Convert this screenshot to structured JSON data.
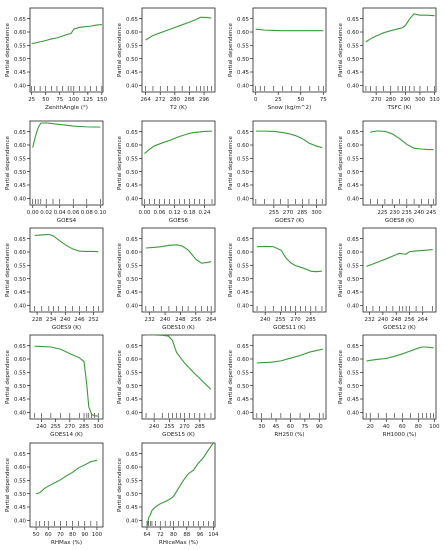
{
  "figure": {
    "ylabel": "Partial dependence",
    "yticks": [
      "0.40",
      "0.45",
      "0.50",
      "0.55",
      "0.60",
      "0.65"
    ],
    "ylim": [
      0.375,
      0.69
    ],
    "line_color": "#3a9a3a"
  },
  "chart_data": [
    {
      "type": "line",
      "xlabel": "ZenithAngle (°)",
      "xlim": [
        22,
        152
      ],
      "xticks": [
        "25",
        "50",
        "75",
        "100",
        "125",
        "150"
      ],
      "x": [
        25,
        30,
        40,
        50,
        60,
        70,
        80,
        90,
        95,
        100,
        110,
        120,
        130,
        140,
        150
      ],
      "y": [
        0.557,
        0.558,
        0.563,
        0.568,
        0.574,
        0.578,
        0.585,
        0.592,
        0.594,
        0.611,
        0.617,
        0.62,
        0.622,
        0.626,
        0.628
      ]
    },
    {
      "type": "line",
      "xlabel": "T2 (K)",
      "xlim": [
        262,
        302
      ],
      "xticks": [
        "264",
        "272",
        "280",
        "288",
        "296"
      ],
      "x": [
        264,
        268,
        272,
        276,
        280,
        284,
        288,
        292,
        294,
        296,
        298,
        300
      ],
      "y": [
        0.57,
        0.587,
        0.597,
        0.607,
        0.617,
        0.627,
        0.637,
        0.648,
        0.655,
        0.655,
        0.654,
        0.652
      ]
    },
    {
      "type": "line",
      "xlabel": "Snow (kg/m^2)",
      "xlim": [
        -3,
        78
      ],
      "xticks": [
        "0",
        "25",
        "50",
        "75"
      ],
      "x": [
        0,
        5,
        10,
        20,
        30,
        40,
        50,
        60,
        70,
        75
      ],
      "y": [
        0.61,
        0.609,
        0.607,
        0.606,
        0.605,
        0.605,
        0.605,
        0.605,
        0.605,
        0.605
      ]
    },
    {
      "type": "line",
      "xlabel": "TSFC (K)",
      "xlim": [
        261,
        311
      ],
      "xticks": [
        "270",
        "280",
        "290",
        "300",
        "310"
      ],
      "x": [
        263,
        266,
        270,
        275,
        280,
        285,
        288,
        290,
        293,
        296,
        300,
        305,
        310
      ],
      "y": [
        0.563,
        0.574,
        0.585,
        0.597,
        0.605,
        0.612,
        0.616,
        0.624,
        0.65,
        0.668,
        0.663,
        0.663,
        0.661
      ]
    },
    {
      "type": "line",
      "xlabel": "GOES4",
      "xlim": [
        -0.004,
        0.104
      ],
      "xticks": [
        "0.00",
        "0.02",
        "0.04",
        "0.06",
        "0.08",
        "0.10"
      ],
      "x": [
        0,
        0.004,
        0.008,
        0.012,
        0.02,
        0.03,
        0.04,
        0.06,
        0.08,
        0.1
      ],
      "y": [
        0.59,
        0.632,
        0.665,
        0.682,
        0.683,
        0.68,
        0.677,
        0.671,
        0.668,
        0.667
      ]
    },
    {
      "type": "line",
      "xlabel": "GOES6",
      "xlim": [
        -0.01,
        0.282
      ],
      "xticks": [
        "0.00",
        "0.06",
        "0.12",
        "0.18",
        "0.24"
      ],
      "x": [
        0,
        0.02,
        0.04,
        0.06,
        0.08,
        0.1,
        0.12,
        0.14,
        0.16,
        0.18,
        0.2,
        0.22,
        0.24,
        0.27
      ],
      "y": [
        0.568,
        0.584,
        0.597,
        0.604,
        0.611,
        0.617,
        0.625,
        0.632,
        0.638,
        0.644,
        0.647,
        0.649,
        0.651,
        0.652
      ]
    },
    {
      "type": "line",
      "xlabel": "GOES7 (K)",
      "xlim": [
        233,
        310
      ],
      "xticks": [
        "255",
        "270",
        "285",
        "300"
      ],
      "x": [
        236,
        245,
        255,
        262,
        270,
        278,
        285,
        292,
        300,
        306
      ],
      "y": [
        0.652,
        0.652,
        0.651,
        0.648,
        0.643,
        0.635,
        0.624,
        0.607,
        0.596,
        0.59
      ]
    },
    {
      "type": "line",
      "xlabel": "GOES8 (K)",
      "xlim": [
        217,
        247
      ],
      "xticks": [
        "225",
        "230",
        "235",
        "240",
        "245"
      ],
      "x": [
        220,
        223,
        226,
        229,
        232,
        235,
        238,
        241,
        244,
        246
      ],
      "y": [
        0.648,
        0.653,
        0.651,
        0.642,
        0.624,
        0.602,
        0.588,
        0.585,
        0.583,
        0.583
      ]
    },
    {
      "type": "line",
      "xlabel": "GOES9 (K)",
      "xlim": [
        225,
        256
      ],
      "xticks": [
        "228",
        "234",
        "240",
        "246",
        "252"
      ],
      "x": [
        227,
        230,
        233,
        235,
        237,
        240,
        243,
        246,
        249,
        252,
        254
      ],
      "y": [
        0.662,
        0.664,
        0.666,
        0.66,
        0.646,
        0.627,
        0.612,
        0.603,
        0.602,
        0.602,
        0.601
      ]
    },
    {
      "type": "line",
      "xlabel": "GOES10 (K)",
      "xlim": [
        228,
        266
      ],
      "xticks": [
        "232",
        "240",
        "248",
        "256",
        "264"
      ],
      "x": [
        230,
        234,
        238,
        242,
        246,
        249,
        252,
        256,
        259,
        262,
        264
      ],
      "y": [
        0.615,
        0.617,
        0.62,
        0.625,
        0.627,
        0.622,
        0.608,
        0.573,
        0.558,
        0.561,
        0.564
      ]
    },
    {
      "type": "line",
      "xlabel": "GOES11 (K)",
      "xlim": [
        228,
        300
      ],
      "xticks": [
        "240",
        "255",
        "270",
        "285"
      ],
      "x": [
        232,
        240,
        248,
        256,
        260,
        265,
        270,
        275,
        280,
        285,
        290,
        296
      ],
      "y": [
        0.62,
        0.621,
        0.62,
        0.606,
        0.58,
        0.56,
        0.549,
        0.543,
        0.536,
        0.528,
        0.526,
        0.528
      ]
    },
    {
      "type": "line",
      "xlabel": "GOES12 (K)",
      "xlim": [
        228,
        272
      ],
      "xticks": [
        "232",
        "240",
        "248",
        "256",
        "264"
      ],
      "x": [
        230,
        234,
        238,
        242,
        246,
        250,
        252,
        254,
        256,
        260,
        264,
        270
      ],
      "y": [
        0.546,
        0.555,
        0.565,
        0.574,
        0.585,
        0.595,
        0.593,
        0.592,
        0.601,
        0.604,
        0.606,
        0.609
      ]
    },
    {
      "type": "line",
      "xlabel": "GOES14 (K)",
      "xlim": [
        228,
        305
      ],
      "xticks": [
        "240",
        "255",
        "270",
        "285",
        "300"
      ],
      "x": [
        233,
        240,
        250,
        260,
        270,
        280,
        285,
        288,
        290,
        293,
        296,
        300
      ],
      "y": [
        0.648,
        0.647,
        0.645,
        0.637,
        0.62,
        0.605,
        0.59,
        0.5,
        0.42,
        0.393,
        0.387,
        0.386
      ]
    },
    {
      "type": "line",
      "xlabel": "GOES15 (K)",
      "xlim": [
        228,
        300
      ],
      "xticks": [
        "240",
        "255",
        "270",
        "285"
      ],
      "x": [
        232,
        240,
        248,
        254,
        258,
        262,
        266,
        270,
        275,
        280,
        285,
        290,
        296
      ],
      "y": [
        0.69,
        0.69,
        0.689,
        0.686,
        0.67,
        0.625,
        0.605,
        0.585,
        0.565,
        0.545,
        0.527,
        0.508,
        0.486
      ]
    },
    {
      "type": "line",
      "xlabel": "RH250 (%)",
      "xlim": [
        21,
        97
      ],
      "xticks": [
        "30",
        "45",
        "60",
        "75",
        "90"
      ],
      "x": [
        25,
        30,
        40,
        50,
        60,
        70,
        80,
        90,
        94
      ],
      "y": [
        0.585,
        0.586,
        0.588,
        0.593,
        0.603,
        0.613,
        0.626,
        0.634,
        0.637
      ]
    },
    {
      "type": "line",
      "xlabel": "RH1000 (%)",
      "xlim": [
        11,
        102
      ],
      "xticks": [
        "20",
        "40",
        "60",
        "80",
        "100"
      ],
      "x": [
        15,
        20,
        30,
        40,
        50,
        60,
        70,
        80,
        85,
        90,
        95,
        99
      ],
      "y": [
        0.592,
        0.595,
        0.599,
        0.602,
        0.61,
        0.619,
        0.63,
        0.641,
        0.645,
        0.645,
        0.643,
        0.642
      ]
    },
    {
      "type": "line",
      "xlabel": "RHMax (%)",
      "xlim": [
        45,
        105
      ],
      "xticks": [
        "50",
        "60",
        "70",
        "80",
        "90",
        "100"
      ],
      "x": [
        50,
        53,
        57,
        60,
        65,
        70,
        75,
        80,
        85,
        90,
        95,
        100
      ],
      "y": [
        0.5,
        0.503,
        0.52,
        0.528,
        0.54,
        0.552,
        0.567,
        0.58,
        0.597,
        0.608,
        0.62,
        0.625
      ]
    },
    {
      "type": "line",
      "xlabel": "RHiceMax (%)",
      "xlim": [
        61,
        105
      ],
      "xticks": [
        "64",
        "72",
        "80",
        "88",
        "96",
        "104"
      ],
      "x": [
        64,
        65,
        66,
        67,
        69,
        72,
        75,
        78,
        80,
        83,
        86,
        89,
        92,
        95,
        98,
        101,
        104
      ],
      "y": [
        0.375,
        0.41,
        0.42,
        0.437,
        0.45,
        0.462,
        0.47,
        0.48,
        0.49,
        0.52,
        0.55,
        0.575,
        0.588,
        0.615,
        0.635,
        0.664,
        0.69
      ]
    }
  ]
}
